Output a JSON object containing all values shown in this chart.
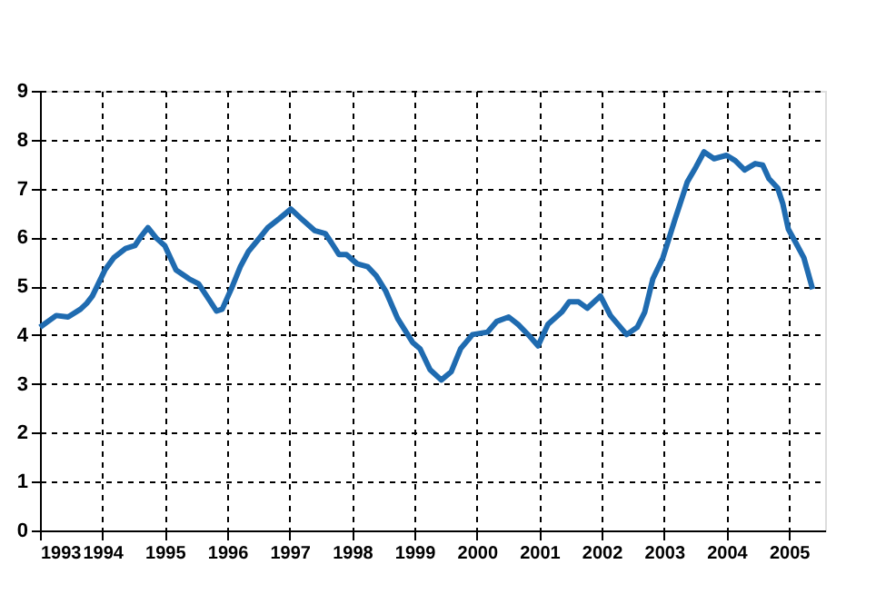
{
  "chart_data": {
    "type": "line",
    "x": [
      1993.0,
      1993.26,
      1993.45,
      1993.65,
      1993.75,
      1993.84,
      1994.04,
      1994.18,
      1994.37,
      1994.52,
      1994.62,
      1994.73,
      1994.86,
      1995.0,
      1995.18,
      1995.39,
      1995.54,
      1995.68,
      1995.83,
      1995.92,
      1996.07,
      1996.21,
      1996.34,
      1996.5,
      1996.65,
      1996.84,
      1997.02,
      1997.18,
      1997.4,
      1997.57,
      1997.67,
      1997.79,
      1997.91,
      1998.08,
      1998.25,
      1998.39,
      1998.54,
      1998.73,
      1998.97,
      1999.09,
      1999.25,
      1999.43,
      1999.59,
      1999.74,
      1999.93,
      2000.17,
      2000.32,
      2000.51,
      2000.66,
      2000.85,
      2000.98,
      2001.14,
      2001.36,
      2001.48,
      2001.63,
      2001.77,
      2001.98,
      2002.14,
      2002.4,
      2002.57,
      2002.69,
      2002.82,
      2002.98,
      2003.18,
      2003.37,
      2003.51,
      2003.64,
      2003.8,
      2004.0,
      2004.14,
      2004.29,
      2004.46,
      2004.58,
      2004.68,
      2004.82,
      2004.9,
      2004.99,
      2005.11,
      2005.24,
      2005.38
    ],
    "series": [
      {
        "color": "#1f6bb0",
        "values": [
          4.16,
          4.4,
          4.37,
          4.53,
          4.65,
          4.8,
          5.33,
          5.58,
          5.77,
          5.83,
          6.02,
          6.2,
          5.99,
          5.83,
          5.33,
          5.15,
          5.05,
          4.78,
          4.49,
          4.53,
          4.96,
          5.4,
          5.71,
          5.96,
          6.2,
          6.39,
          6.58,
          6.39,
          6.14,
          6.08,
          5.89,
          5.65,
          5.65,
          5.46,
          5.4,
          5.21,
          4.9,
          4.34,
          3.85,
          3.72,
          3.29,
          3.08,
          3.25,
          3.72,
          4.01,
          4.06,
          4.28,
          4.37,
          4.22,
          3.97,
          3.78,
          4.22,
          4.47,
          4.68,
          4.68,
          4.55,
          4.8,
          4.4,
          4.01,
          4.16,
          4.47,
          5.15,
          5.58,
          6.39,
          7.13,
          7.44,
          7.75,
          7.61,
          7.68,
          7.57,
          7.38,
          7.51,
          7.48,
          7.2,
          7.01,
          6.7,
          6.17,
          5.89,
          5.58,
          4.94
        ]
      }
    ],
    "xlim": [
      1993,
      2005.58
    ],
    "xticks": [
      1993,
      1994,
      1995,
      1996,
      1997,
      1998,
      1999,
      2000,
      2001,
      2002,
      2003,
      2004,
      2005
    ],
    "ylim": [
      0,
      9
    ],
    "yticks": [
      0,
      1,
      2,
      3,
      4,
      5,
      6,
      7,
      8,
      9
    ],
    "grid": true,
    "line_style": "solid",
    "marker": "none"
  }
}
